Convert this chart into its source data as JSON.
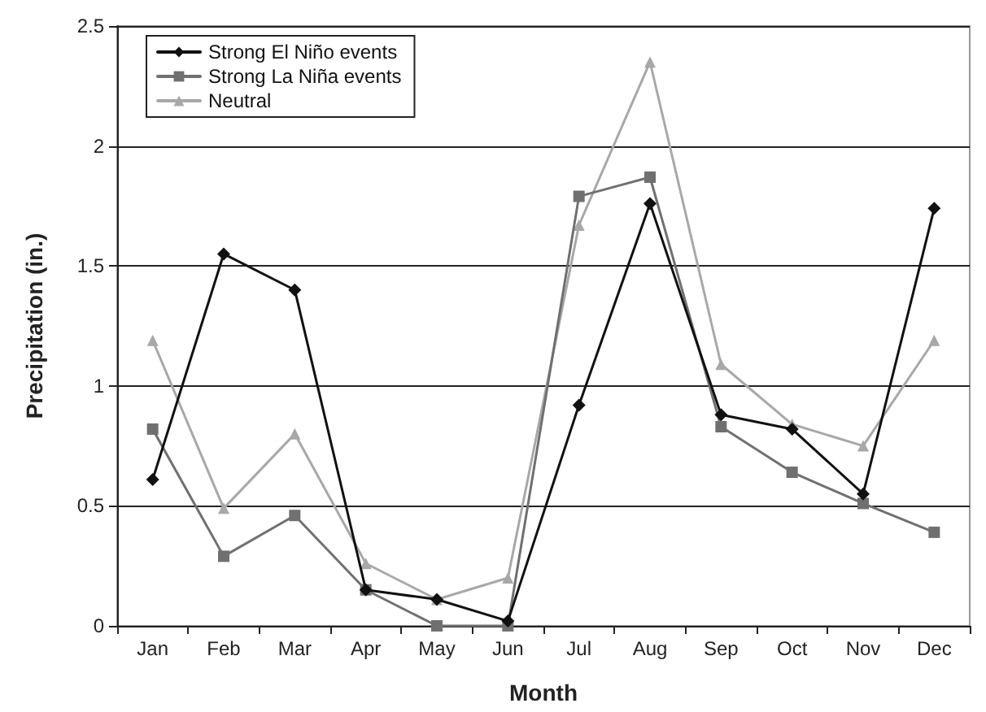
{
  "chart_data": {
    "type": "line",
    "xlabel": "Month",
    "ylabel": "Precipitation (in.)",
    "categories": [
      "Jan",
      "Feb",
      "Mar",
      "Apr",
      "May",
      "Jun",
      "Jul",
      "Aug",
      "Sep",
      "Oct",
      "Nov",
      "Dec"
    ],
    "series": [
      {
        "name": "Strong El Niño events",
        "color": "#111111",
        "marker": "diamond",
        "values": [
          0.61,
          1.55,
          1.4,
          0.15,
          0.11,
          0.02,
          0.92,
          1.76,
          0.88,
          0.82,
          0.55,
          1.74
        ]
      },
      {
        "name": "Strong La Niña events",
        "color": "#707070",
        "marker": "square",
        "values": [
          0.82,
          0.29,
          0.46,
          0.15,
          0,
          0,
          1.79,
          1.87,
          0.83,
          0.64,
          0.51,
          0.39
        ]
      },
      {
        "name": "Neutral",
        "color": "#a8a8a8",
        "marker": "triangle",
        "values": [
          1.19,
          0.49,
          0.8,
          0.26,
          0.11,
          0.2,
          1.67,
          2.35,
          1.09,
          0.84,
          0.75,
          1.19
        ]
      }
    ],
    "ylim": [
      0,
      2.5
    ],
    "yticks": [
      0,
      0.5,
      1,
      1.5,
      2,
      2.5
    ],
    "grid": "y",
    "legend": "top left",
    "line_style": "solid"
  }
}
